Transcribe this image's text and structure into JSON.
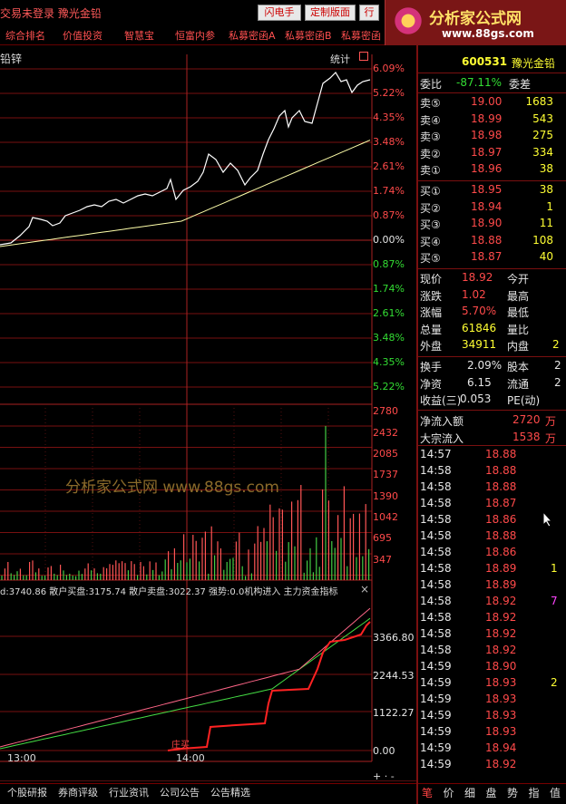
{
  "topbar": {
    "title": "交易未登录  豫光金铅",
    "btn_flash": "闪电手",
    "btn_layout": "定制版面",
    "btn_more": "行"
  },
  "logo": {
    "text": "分析家公式网",
    "url": "www.88gs.com"
  },
  "menu": [
    "综合排名",
    "价值投资",
    "智慧宝",
    "恒富内参",
    "私募密函A",
    "私募密函B",
    "私募密函"
  ],
  "chart": {
    "stock": "铅锌",
    "stat_label": "统计",
    "pct_labels_up": [
      "6.09%",
      "5.22%",
      "4.35%",
      "3.48%",
      "2.61%",
      "1.74%",
      "0.87%"
    ],
    "pct_zero": "0.00%",
    "pct_labels_dn": [
      "0.87%",
      "1.74%",
      "2.61%",
      "3.48%",
      "4.35%",
      "5.22%"
    ],
    "vol_labels": [
      "2780",
      "2432",
      "2085",
      "1737",
      "1390",
      "1042",
      "695",
      "347"
    ],
    "watermark": "分析家公式网 www.88gs.com",
    "indicator": "d:3740.86  散户买盘:3175.74  散户卖盘:3022.37  强势:0.0机构进入 主力资金指标",
    "ind_labels": [
      "3366.80",
      "2244.53",
      "1122.27",
      "0.00"
    ],
    "dip_label": "庄买",
    "times": [
      "13:00",
      "14:00"
    ],
    "zoom": "+  ·  -"
  },
  "bottom_tabs": [
    "个股研报",
    "券商评级",
    "行业资讯",
    "公司公告",
    "公告精选"
  ],
  "right": {
    "code": "600531",
    "name": "豫光金铅",
    "ratio_label": "委比",
    "ratio": "-87.11%",
    "diff_label": "委差",
    "asks": [
      {
        "l": "卖⑤",
        "p": "19.00",
        "v": "1683"
      },
      {
        "l": "卖④",
        "p": "18.99",
        "v": "543"
      },
      {
        "l": "卖③",
        "p": "18.98",
        "v": "275"
      },
      {
        "l": "卖②",
        "p": "18.97",
        "v": "334"
      },
      {
        "l": "卖①",
        "p": "18.96",
        "v": "38"
      }
    ],
    "bids": [
      {
        "l": "买①",
        "p": "18.95",
        "v": "38"
      },
      {
        "l": "买②",
        "p": "18.94",
        "v": "1"
      },
      {
        "l": "买③",
        "p": "18.90",
        "v": "11"
      },
      {
        "l": "买④",
        "p": "18.88",
        "v": "108"
      },
      {
        "l": "买⑤",
        "p": "18.87",
        "v": "40"
      }
    ],
    "stats1": [
      {
        "a": "现价",
        "b": "18.92",
        "c": "今开"
      },
      {
        "a": "涨跌",
        "b": "1.02",
        "c": "最高"
      },
      {
        "a": "涨幅",
        "b": "5.70%",
        "c": "最低"
      },
      {
        "a": "总量",
        "b": "61846",
        "c": "量比"
      },
      {
        "a": "外盘",
        "b": "34911",
        "c": "内盘",
        "d": "2"
      }
    ],
    "stats2": [
      {
        "a": "换手",
        "b": "2.09%",
        "c": "股本",
        "d": "2"
      },
      {
        "a": "净资",
        "b": "6.15",
        "c": "流通",
        "d": "2"
      },
      {
        "a": "收益(三)",
        "b": "0.053",
        "c": "PE(动)"
      }
    ],
    "flow": [
      {
        "a": "净流入额",
        "b": "2720",
        "u": "万"
      },
      {
        "a": "大宗流入",
        "b": "1538",
        "u": "万"
      }
    ],
    "ticks": [
      {
        "t": "14:57",
        "p": "18.88",
        "v": ""
      },
      {
        "t": "14:58",
        "p": "18.88",
        "v": ""
      },
      {
        "t": "14:58",
        "p": "18.88",
        "v": ""
      },
      {
        "t": "14:58",
        "p": "18.87",
        "v": ""
      },
      {
        "t": "14:58",
        "p": "18.86",
        "v": ""
      },
      {
        "t": "14:58",
        "p": "18.88",
        "v": ""
      },
      {
        "t": "14:58",
        "p": "18.86",
        "v": ""
      },
      {
        "t": "14:58",
        "p": "18.89",
        "v": "1"
      },
      {
        "t": "14:58",
        "p": "18.89",
        "v": ""
      },
      {
        "t": "14:58",
        "p": "18.92",
        "v": "7"
      },
      {
        "t": "14:58",
        "p": "18.92",
        "v": ""
      },
      {
        "t": "14:58",
        "p": "18.92",
        "v": ""
      },
      {
        "t": "14:58",
        "p": "18.92",
        "v": ""
      },
      {
        "t": "14:59",
        "p": "18.90",
        "v": ""
      },
      {
        "t": "14:59",
        "p": "18.93",
        "v": "2"
      },
      {
        "t": "14:59",
        "p": "18.93",
        "v": ""
      },
      {
        "t": "14:59",
        "p": "18.93",
        "v": ""
      },
      {
        "t": "14:59",
        "p": "18.93",
        "v": ""
      },
      {
        "t": "14:59",
        "p": "18.94",
        "v": ""
      },
      {
        "t": "14:59",
        "p": "18.92",
        "v": ""
      }
    ],
    "tabs": [
      "笔",
      "价",
      "细",
      "盘",
      "势",
      "指",
      "值"
    ]
  }
}
